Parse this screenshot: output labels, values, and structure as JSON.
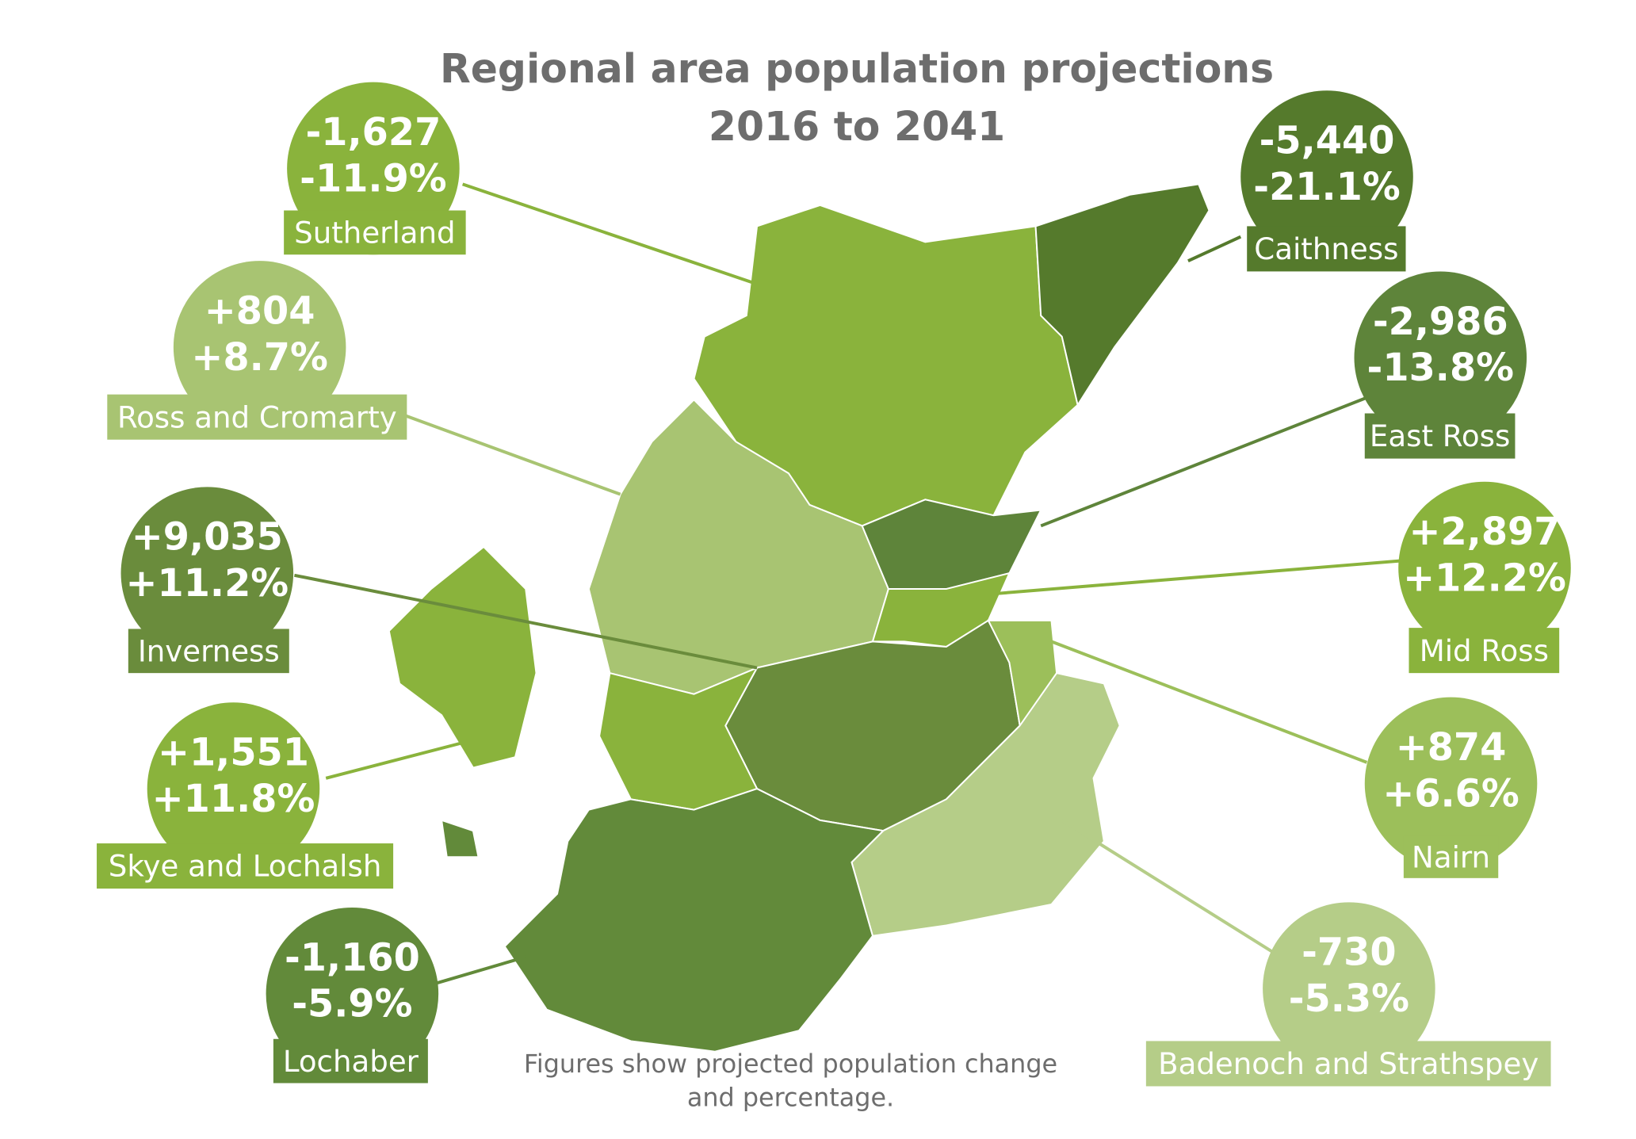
{
  "title": [
    "Regional area population projections",
    "2016 to 2041"
  ],
  "footnote": [
    "Figures show projected population change",
    "and percentage."
  ],
  "regions": [
    {
      "name": "Sutherland",
      "change": "-1,627",
      "percent": "-11.9%",
      "color": "#8ab33c"
    },
    {
      "name": "Ross and Cromarty",
      "change": "+804",
      "percent": "+8.7%",
      "color": "#a8c472"
    },
    {
      "name": "Inverness",
      "change": "+9,035",
      "percent": "+11.2%",
      "color": "#6a8c3c"
    },
    {
      "name": "Skye and Lochalsh",
      "change": "+1,551",
      "percent": "+11.8%",
      "color": "#8ab33c"
    },
    {
      "name": "Lochaber",
      "change": "-1,160",
      "percent": "-5.9%",
      "color": "#628a3a"
    },
    {
      "name": "Caithness",
      "change": "-5,440",
      "percent": "-21.1%",
      "color": "#557a2c"
    },
    {
      "name": "East Ross",
      "change": "-2,986",
      "percent": "-13.8%",
      "color": "#5e843a"
    },
    {
      "name": "Mid Ross",
      "change": "+2,897",
      "percent": "+12.2%",
      "color": "#8ab33c"
    },
    {
      "name": "Nairn",
      "change": "+874",
      "percent": "+6.6%",
      "color": "#9cbf5a"
    },
    {
      "name": "Badenoch and Strathspey",
      "change": "-730",
      "percent": "-5.3%",
      "color": "#b5cd88"
    }
  ]
}
